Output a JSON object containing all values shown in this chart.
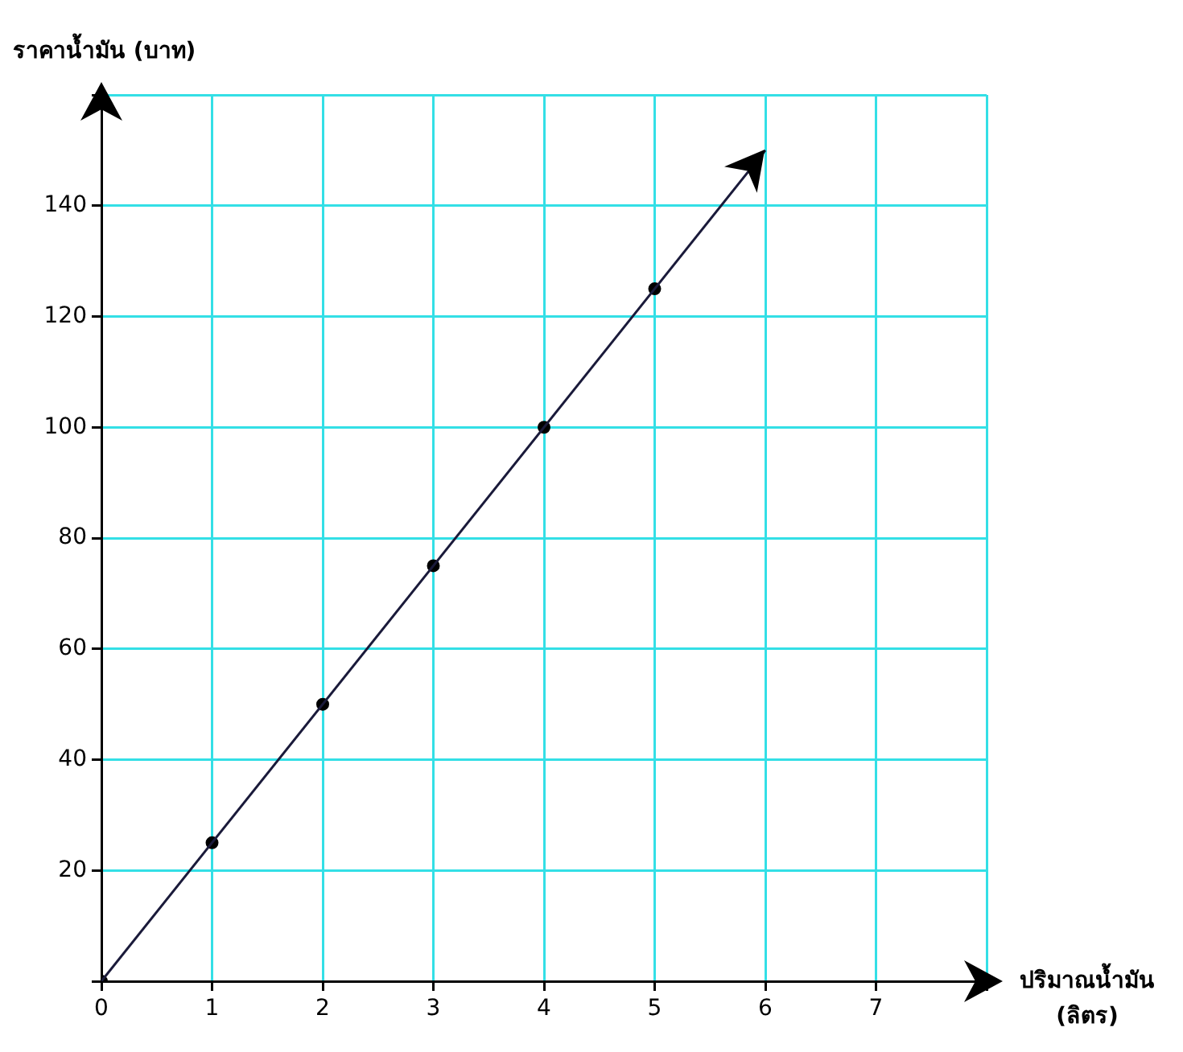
{
  "chart_data": {
    "type": "scatter",
    "xlabel": "ปริมาณน้ำมัน (ลิตร)",
    "ylabel": "ราคาน้ำมัน (บาท)",
    "xlim": [
      0,
      8
    ],
    "xticks": [
      0,
      1,
      2,
      3,
      4,
      5,
      6,
      7,
      {
        "value": 8,
        "label": null
      }
    ],
    "ylim": [
      0,
      160
    ],
    "yticks": [
      {
        "value": 0,
        "label": null
      },
      20,
      40,
      60,
      80,
      100,
      120,
      140,
      {
        "value": 160,
        "label": null
      }
    ],
    "grid": true,
    "legend": false,
    "series": [
      {
        "type": "line",
        "x": [
          0,
          6
        ],
        "values": [
          0,
          150
        ],
        "color": "#1a1a3a",
        "marker": "none"
      },
      {
        "x": [
          0,
          1,
          2,
          3,
          4,
          5
        ],
        "values": [
          0,
          25,
          50,
          75,
          100,
          125
        ],
        "color": "#000000",
        "marker": "circle"
      }
    ]
  }
}
